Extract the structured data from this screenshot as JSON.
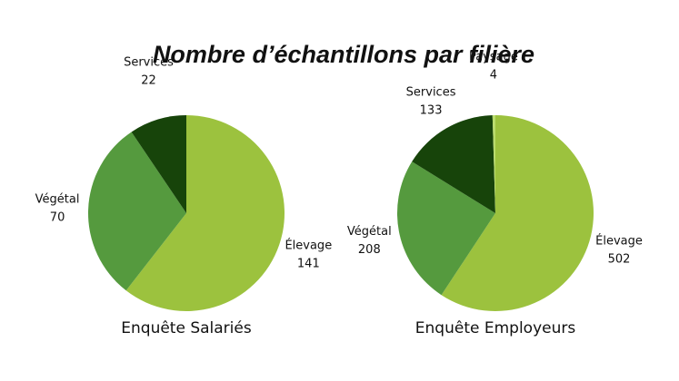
{
  "title": "Nombre d’échantillons par filière",
  "chart_data": [
    {
      "type": "pie",
      "title": "Enquête Salariés",
      "categories": [
        "Élevage",
        "Végétal",
        "Services"
      ],
      "values": [
        141,
        70,
        22
      ],
      "colors": [
        "#9cc23e",
        "#559a3e",
        "#17440a"
      ]
    },
    {
      "type": "pie",
      "title": "Enquête Employeurs",
      "categories": [
        "Élevage",
        "Végétal",
        "Services",
        "Paysage"
      ],
      "values": [
        502,
        208,
        133,
        4
      ],
      "colors": [
        "#9cc23e",
        "#559a3e",
        "#17440a",
        "#b9dc6c"
      ]
    }
  ]
}
